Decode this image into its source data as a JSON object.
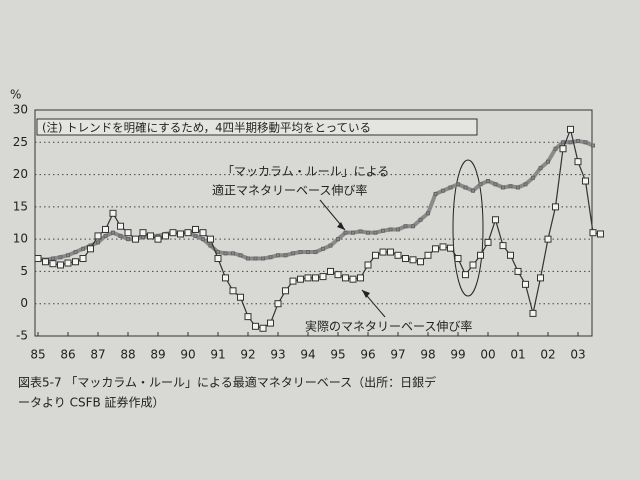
{
  "chart_data": {
    "type": "line",
    "y_unit": "%",
    "note": "(注) トレンドを明確にするため，4四半期移動平均をとっている",
    "annotation": "「マッカラム・ルール」による",
    "caption": [
      "図表5-7 「マッカラム・ルール」による最適マネタリーベース（出所：日銀デ",
      "ータより CSFB 証券作成）"
    ],
    "categories": [
      "85",
      null,
      null,
      null,
      "86",
      null,
      null,
      null,
      "87",
      null,
      null,
      null,
      "88",
      null,
      null,
      null,
      "89",
      null,
      null,
      null,
      "90",
      null,
      null,
      null,
      "91",
      null,
      null,
      null,
      "92",
      null,
      null,
      null,
      "93",
      null,
      null,
      null,
      "94",
      null,
      null,
      null,
      "95",
      null,
      null,
      null,
      "96",
      null,
      null,
      null,
      "97",
      null,
      null,
      null,
      "98",
      null,
      null,
      null,
      "99",
      null,
      null,
      null,
      "00",
      null,
      null,
      null,
      "01",
      null,
      null,
      null,
      "02",
      null,
      null,
      null,
      "03",
      null,
      null,
      null
    ],
    "series": [
      {
        "name": "適正マネタリーベース伸び率",
        "color": "#8a8a8a",
        "values": [
          7,
          6.8,
          7,
          7.2,
          7.5,
          8,
          8.5,
          9,
          9.5,
          10.5,
          11,
          10.5,
          10,
          10,
          10.3,
          10.5,
          10.5,
          10.8,
          11,
          11,
          11,
          10.5,
          10,
          9,
          8,
          7.8,
          7.8,
          7.5,
          7,
          7,
          7,
          7.2,
          7.5,
          7.5,
          7.8,
          8,
          8,
          8,
          8.5,
          9,
          10,
          11,
          11,
          11.2,
          11,
          11,
          11.3,
          11.5,
          11.5,
          12,
          12,
          13,
          14,
          17,
          17.5,
          18,
          18.5,
          18,
          17.5,
          18.5,
          19,
          18.5,
          18,
          18.2,
          18,
          18.5,
          19.5,
          21,
          22,
          24,
          25,
          25,
          25.2,
          25,
          24.5,
          null
        ]
      },
      {
        "name": "実際のマネタリーベース伸び率",
        "color": "#333333",
        "values": [
          7,
          6.5,
          6.2,
          6,
          6.3,
          6.5,
          7,
          8.5,
          10.5,
          11.5,
          14,
          12,
          11,
          10,
          11,
          10.5,
          10,
          10.5,
          11,
          10.8,
          11,
          11.5,
          11,
          10,
          7,
          4,
          2,
          1,
          -2,
          -3.5,
          -3.8,
          -3,
          0,
          2,
          3.5,
          3.8,
          4,
          4,
          4.2,
          5,
          4.5,
          4,
          3.8,
          4,
          6,
          7.5,
          8,
          8,
          7.5,
          7,
          6.8,
          6.5,
          7.5,
          8.5,
          8.8,
          8.6,
          7,
          4.5,
          6,
          7.5,
          9.5,
          13,
          9,
          7.5,
          5,
          3,
          -1.5,
          4,
          10,
          15,
          24,
          27,
          22,
          19,
          11,
          10.8
        ]
      }
    ],
    "ylim": [
      -5,
      30
    ],
    "yticks": [
      -5,
      0,
      5,
      10,
      15,
      20,
      25,
      30
    ],
    "grid": true
  }
}
